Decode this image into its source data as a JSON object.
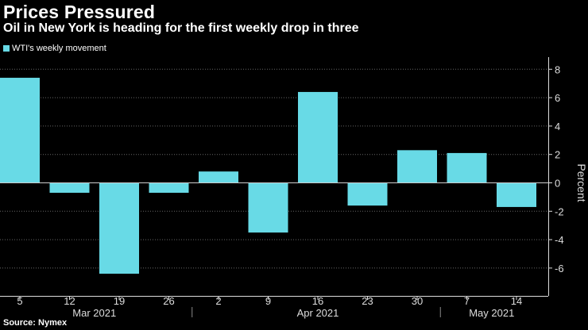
{
  "chart_data": {
    "type": "bar",
    "title": "Prices Pressured",
    "subtitle": "Oil in New York is heading for the first weekly drop in three",
    "legend": "WTI's weekly movement",
    "categories": [
      "5",
      "12",
      "19",
      "26",
      "2",
      "9",
      "16",
      "23",
      "30",
      "7",
      "14"
    ],
    "months": [
      {
        "label": "Mar 2021",
        "start": 0,
        "end": 3
      },
      {
        "label": "Apr 2021",
        "start": 4,
        "end": 8
      },
      {
        "label": "May 2021",
        "start": 9,
        "end": 10
      }
    ],
    "values": [
      7.4,
      -0.7,
      -6.4,
      -0.7,
      0.8,
      -3.5,
      6.4,
      -1.6,
      2.3,
      2.1,
      -1.7
    ],
    "ylabel": "Percent",
    "ylim": [
      -7.5,
      9
    ],
    "yticks": [
      8,
      6,
      4,
      2,
      0,
      -2,
      -4,
      -6
    ],
    "source": "Source: Nymex",
    "colors": {
      "bar": "#68dae6",
      "grid": "#666666",
      "zero": "#cccccc",
      "background": "#000000"
    }
  }
}
